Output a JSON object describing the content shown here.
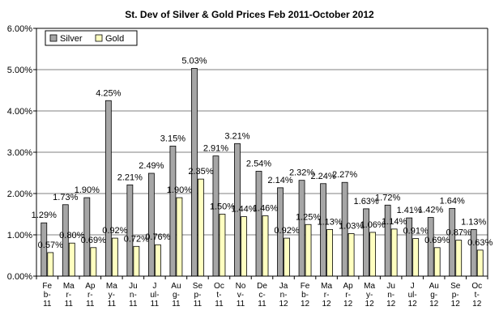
{
  "chart_data": {
    "type": "bar",
    "title": "St. Dev of Silver & Gold Prices  Feb 2011-October 2012",
    "xlabel": "",
    "ylabel": "",
    "ylim": [
      0,
      6
    ],
    "y_ticks": [
      "0.00%",
      "1.00%",
      "2.00%",
      "3.00%",
      "4.00%",
      "5.00%",
      "6.00%"
    ],
    "grid": true,
    "legend_position": "top-left",
    "categories": [
      [
        "Fe",
        "b-",
        "11"
      ],
      [
        "Ma",
        "r-",
        "11"
      ],
      [
        "Ap",
        "r-",
        "11"
      ],
      [
        "Ma",
        "y-",
        "11"
      ],
      [
        "Ju",
        "n-",
        "11"
      ],
      [
        "J",
        "ul-",
        "11"
      ],
      [
        "Au",
        "g-",
        "11"
      ],
      [
        "Se",
        "p-",
        "11"
      ],
      [
        "Oc",
        "t-",
        "11"
      ],
      [
        "No",
        "v-",
        "11"
      ],
      [
        "De",
        "c-",
        "11"
      ],
      [
        "Ja",
        "n-",
        "12"
      ],
      [
        "Fe",
        "b-",
        "12"
      ],
      [
        "Ma",
        "r-",
        "12"
      ],
      [
        "Ap",
        "r-",
        "12"
      ],
      [
        "Ma",
        "y-",
        "12"
      ],
      [
        "Ju",
        "n-",
        "12"
      ],
      [
        "J",
        "ul-",
        "12"
      ],
      [
        "Au",
        "g-",
        "12"
      ],
      [
        "Se",
        "p-",
        "12"
      ],
      [
        "Oc",
        "t-",
        "12"
      ]
    ],
    "series": [
      {
        "name": "Silver",
        "color": "#a6a6a6",
        "values": [
          1.29,
          1.73,
          1.9,
          4.25,
          2.21,
          2.49,
          3.15,
          5.03,
          2.91,
          3.21,
          2.54,
          2.14,
          2.32,
          2.24,
          2.27,
          1.63,
          1.72,
          1.41,
          1.42,
          1.64,
          1.13
        ],
        "labels": [
          "1.29%",
          "1.73%",
          "1.90%",
          "4.25%",
          "2.21%",
          "2.49%",
          "3.15%",
          "5.03%",
          "2.91%",
          "3.21%",
          "2.54%",
          "2.14%",
          "2.32%",
          "2.24%",
          "2.27%",
          "1.63%",
          "1.72%",
          "1.41%",
          "1.42%",
          "1.64%",
          "1.13%"
        ]
      },
      {
        "name": "Gold",
        "color": "#ffffc0",
        "values": [
          0.57,
          0.8,
          0.69,
          0.92,
          0.72,
          0.76,
          1.9,
          2.35,
          1.5,
          1.44,
          1.46,
          0.92,
          1.25,
          1.13,
          1.03,
          1.06,
          1.14,
          0.91,
          0.69,
          0.87,
          0.63
        ],
        "labels": [
          "0.57%",
          "0.80%",
          "0.69%",
          "0.92%",
          "0.72%",
          "0.76%",
          "1.90%",
          "2.35%",
          "1.50%",
          "1.44%",
          "1.46%",
          "0.92%",
          "1.25%",
          "1.13%",
          "1.03%",
          "1.06%",
          "1.14%",
          "0.91%",
          "0.69%",
          "0.87%",
          "0.63%"
        ]
      }
    ]
  }
}
